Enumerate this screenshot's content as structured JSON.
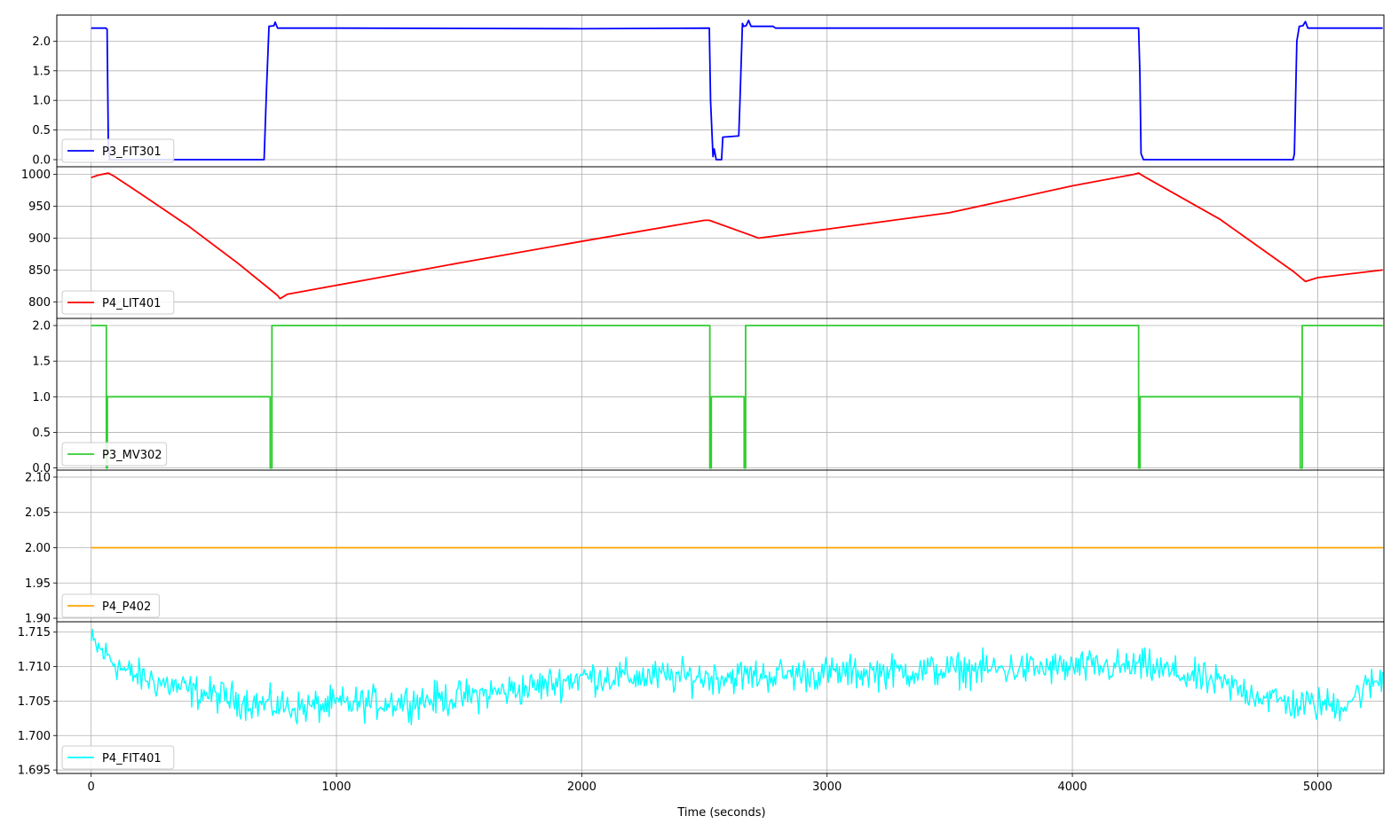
{
  "chart_data": {
    "type": "line",
    "layout": "stacked-subplots-shared-x",
    "xlabel": "Time (seconds)",
    "xlim": [
      -140,
      5270
    ],
    "xticks": [
      0,
      1000,
      2000,
      3000,
      4000,
      5000
    ],
    "xtick_labels": [
      "0",
      "1000",
      "2000",
      "3000",
      "4000",
      "5000"
    ],
    "grid": true,
    "legend_placement": "lower-left",
    "panels": [
      {
        "name": "P3_FIT301",
        "color": "#0000ff",
        "ylim": [
          -0.12,
          2.44
        ],
        "yticks": [
          0.0,
          0.5,
          1.0,
          1.5,
          2.0
        ],
        "ytick_labels": [
          "0.0",
          "0.5",
          "1.0",
          "1.5",
          "2.0"
        ],
        "points": [
          [
            0,
            2.22
          ],
          [
            60,
            2.22
          ],
          [
            65,
            2.2
          ],
          [
            70,
            0.3
          ],
          [
            75,
            0.0
          ],
          [
            700,
            0.0
          ],
          [
            705,
            0.0
          ],
          [
            715,
            1.2
          ],
          [
            725,
            2.25
          ],
          [
            745,
            2.26
          ],
          [
            750,
            2.32
          ],
          [
            760,
            2.22
          ],
          [
            1000,
            2.22
          ],
          [
            2000,
            2.21
          ],
          [
            2520,
            2.22
          ],
          [
            2525,
            1.0
          ],
          [
            2535,
            0.05
          ],
          [
            2540,
            0.18
          ],
          [
            2548,
            0.0
          ],
          [
            2560,
            0.0
          ],
          [
            2570,
            0.0
          ],
          [
            2575,
            0.38
          ],
          [
            2640,
            0.4
          ],
          [
            2645,
            1.0
          ],
          [
            2655,
            2.3
          ],
          [
            2660,
            2.25
          ],
          [
            2670,
            2.26
          ],
          [
            2680,
            2.35
          ],
          [
            2690,
            2.25
          ],
          [
            2780,
            2.25
          ],
          [
            2790,
            2.22
          ],
          [
            3500,
            2.22
          ],
          [
            4000,
            2.22
          ],
          [
            4270,
            2.22
          ],
          [
            4275,
            1.5
          ],
          [
            4280,
            0.1
          ],
          [
            4290,
            0.0
          ],
          [
            4900,
            0.0
          ],
          [
            4905,
            0.1
          ],
          [
            4915,
            2.0
          ],
          [
            4925,
            2.25
          ],
          [
            4940,
            2.26
          ],
          [
            4950,
            2.33
          ],
          [
            4960,
            2.22
          ],
          [
            5265,
            2.22
          ]
        ]
      },
      {
        "name": "P4_LIT401",
        "color": "#ff0000",
        "ylim": [
          774,
          1012
        ],
        "yticks": [
          800,
          850,
          900,
          950,
          1000
        ],
        "ytick_labels": [
          "800",
          "850",
          "900",
          "950",
          "1000"
        ],
        "points": [
          [
            0,
            995
          ],
          [
            30,
            999
          ],
          [
            70,
            1002
          ],
          [
            90,
            998
          ],
          [
            200,
            970
          ],
          [
            400,
            918
          ],
          [
            600,
            860
          ],
          [
            760,
            810
          ],
          [
            770,
            805
          ],
          [
            800,
            812
          ],
          [
            1000,
            826
          ],
          [
            1500,
            861
          ],
          [
            2000,
            895
          ],
          [
            2500,
            928
          ],
          [
            2520,
            928
          ],
          [
            2700,
            903
          ],
          [
            2720,
            900
          ],
          [
            3000,
            914
          ],
          [
            3500,
            940
          ],
          [
            4000,
            982
          ],
          [
            4250,
            1000
          ],
          [
            4270,
            1002
          ],
          [
            4300,
            995
          ],
          [
            4600,
            930
          ],
          [
            4900,
            848
          ],
          [
            4950,
            832
          ],
          [
            5000,
            838
          ],
          [
            5265,
            850
          ]
        ]
      },
      {
        "name": "P3_MV302",
        "color": "#32cd32",
        "ylim": [
          -0.03,
          2.1
        ],
        "yticks": [
          0.0,
          0.5,
          1.0,
          1.5,
          2.0
        ],
        "ytick_labels": [
          "0.0",
          "0.5",
          "1.0",
          "1.5",
          "2.0"
        ],
        "points": [
          [
            0,
            2
          ],
          [
            62,
            2
          ],
          [
            62,
            0
          ],
          [
            66,
            0
          ],
          [
            66,
            1
          ],
          [
            730,
            1
          ],
          [
            730,
            0
          ],
          [
            737,
            0
          ],
          [
            737,
            2
          ],
          [
            2522,
            2
          ],
          [
            2522,
            0
          ],
          [
            2528,
            0
          ],
          [
            2528,
            1
          ],
          [
            2662,
            1
          ],
          [
            2662,
            0
          ],
          [
            2668,
            0
          ],
          [
            2668,
            2
          ],
          [
            4270,
            2
          ],
          [
            4270,
            0
          ],
          [
            4276,
            0
          ],
          [
            4276,
            1
          ],
          [
            4929,
            1
          ],
          [
            4929,
            0
          ],
          [
            4937,
            0
          ],
          [
            4937,
            2
          ],
          [
            5265,
            2
          ]
        ]
      },
      {
        "name": "P4_P402",
        "color": "#ffa500",
        "ylim": [
          1.895,
          2.11
        ],
        "yticks": [
          1.9,
          1.95,
          2.0,
          2.05,
          2.1
        ],
        "ytick_labels": [
          "1.90",
          "1.95",
          "2.00",
          "2.05",
          "2.10"
        ],
        "points": [
          [
            0,
            2.0
          ],
          [
            5265,
            2.0
          ]
        ]
      },
      {
        "name": "P4_FIT401",
        "color": "#00ffff",
        "ylim": [
          1.6945,
          1.7165
        ],
        "yticks": [
          1.695,
          1.7,
          1.705,
          1.71,
          1.715
        ],
        "ytick_labels": [
          "1.695",
          "1.700",
          "1.705",
          "1.710",
          "1.715"
        ],
        "noisy": true,
        "points": [
          [
            0,
            1.7135
          ],
          [
            150,
            1.709
          ],
          [
            400,
            1.7065
          ],
          [
            700,
            1.7045
          ],
          [
            850,
            1.704
          ],
          [
            1000,
            1.7045
          ],
          [
            1300,
            1.705
          ],
          [
            1500,
            1.7055
          ],
          [
            1800,
            1.707
          ],
          [
            2000,
            1.7085
          ],
          [
            2500,
            1.7085
          ],
          [
            3000,
            1.709
          ],
          [
            3500,
            1.7095
          ],
          [
            4000,
            1.7098
          ],
          [
            4300,
            1.71
          ],
          [
            4600,
            1.7075
          ],
          [
            4900,
            1.7045
          ],
          [
            5100,
            1.7045
          ],
          [
            5265,
            1.7085
          ]
        ]
      }
    ]
  }
}
